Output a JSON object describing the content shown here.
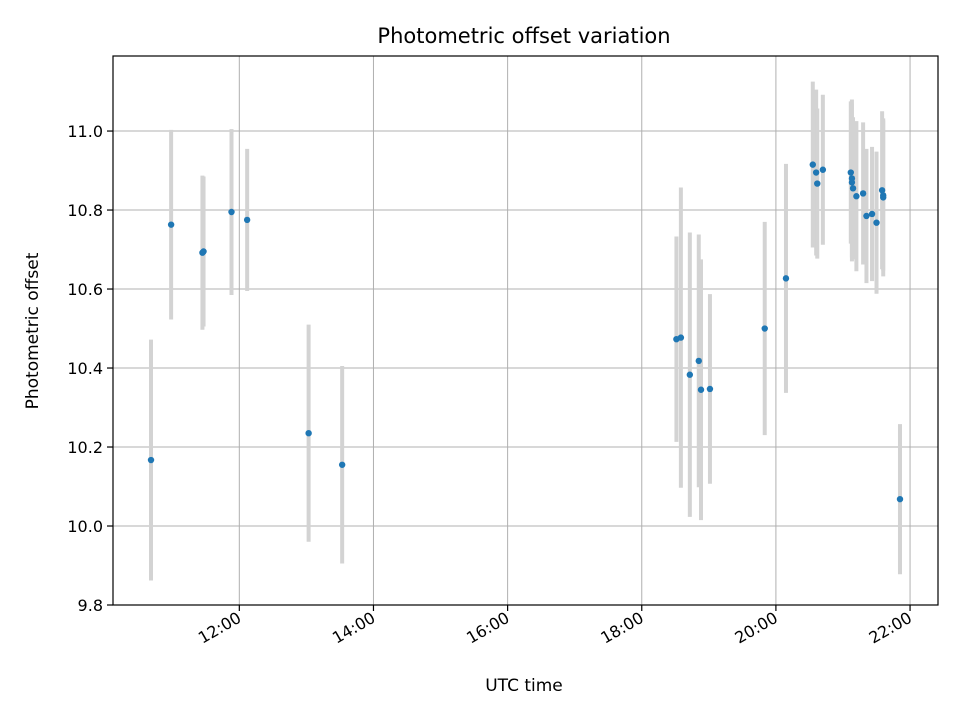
{
  "chart_data": {
    "type": "scatter",
    "title": "Photometric offset variation",
    "xlabel": "UTC time",
    "ylabel": "Photometric offset",
    "x_unit": "UTC time (HH:MM)",
    "xlim": [
      "10:07",
      "22:25"
    ],
    "ylim": [
      9.8,
      11.19
    ],
    "x_ticks": [
      "12:00",
      "14:00",
      "16:00",
      "18:00",
      "20:00",
      "22:00"
    ],
    "y_ticks": [
      9.8,
      10.0,
      10.2,
      10.4,
      10.6,
      10.8,
      11.0
    ],
    "grid": true,
    "legend": "none",
    "colors": {
      "point": "#1f77b4",
      "errorbar": "#d3d3d3",
      "grid": "#b0b0b0"
    },
    "points": [
      {
        "x": "10:41",
        "y": 10.167,
        "err": 0.305
      },
      {
        "x": "10:59",
        "y": 10.763,
        "err": 0.24
      },
      {
        "x": "11:27",
        "y": 10.692,
        "err": 0.195
      },
      {
        "x": "11:28",
        "y": 10.695,
        "err": 0.19
      },
      {
        "x": "11:53",
        "y": 10.795,
        "err": 0.21
      },
      {
        "x": "12:07",
        "y": 10.775,
        "err": 0.18
      },
      {
        "x": "13:02",
        "y": 10.235,
        "err": 0.275
      },
      {
        "x": "13:32",
        "y": 10.155,
        "err": 0.25
      },
      {
        "x": "18:31",
        "y": 10.473,
        "err": 0.26
      },
      {
        "x": "18:35",
        "y": 10.477,
        "err": 0.38
      },
      {
        "x": "18:43",
        "y": 10.383,
        "err": 0.36
      },
      {
        "x": "18:51",
        "y": 10.418,
        "err": 0.32
      },
      {
        "x": "18:53",
        "y": 10.345,
        "err": 0.33
      },
      {
        "x": "19:01",
        "y": 10.347,
        "err": 0.24
      },
      {
        "x": "19:50",
        "y": 10.5,
        "err": 0.27
      },
      {
        "x": "20:09",
        "y": 10.627,
        "err": 0.29
      },
      {
        "x": "20:33",
        "y": 10.915,
        "err": 0.21
      },
      {
        "x": "20:36",
        "y": 10.895,
        "err": 0.21
      },
      {
        "x": "20:37",
        "y": 10.867,
        "err": 0.19
      },
      {
        "x": "20:42",
        "y": 10.902,
        "err": 0.19
      },
      {
        "x": "21:07",
        "y": 10.895,
        "err": 0.18
      },
      {
        "x": "21:08",
        "y": 10.88,
        "err": 0.2
      },
      {
        "x": "21:08",
        "y": 10.87,
        "err": 0.2
      },
      {
        "x": "21:09",
        "y": 10.855,
        "err": 0.18
      },
      {
        "x": "21:12",
        "y": 10.835,
        "err": 0.19
      },
      {
        "x": "21:18",
        "y": 10.842,
        "err": 0.18
      },
      {
        "x": "21:21",
        "y": 10.785,
        "err": 0.17
      },
      {
        "x": "21:26",
        "y": 10.79,
        "err": 0.17
      },
      {
        "x": "21:30",
        "y": 10.768,
        "err": 0.18
      },
      {
        "x": "21:35",
        "y": 10.85,
        "err": 0.2
      },
      {
        "x": "21:36",
        "y": 10.837,
        "err": 0.19
      },
      {
        "x": "21:36",
        "y": 10.832,
        "err": 0.2
      },
      {
        "x": "21:51",
        "y": 10.068,
        "err": 0.19
      }
    ]
  }
}
